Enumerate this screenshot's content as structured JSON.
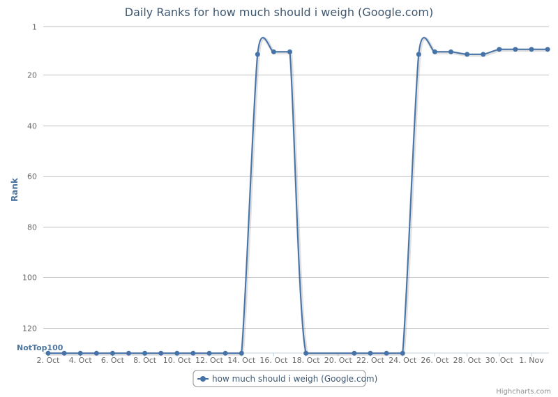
{
  "chart_data": {
    "type": "line",
    "title": "Daily Ranks for how much should i weigh (Google.com)",
    "ylabel": "Rank",
    "xlabel": "",
    "y_reversed": true,
    "ylim": [
      1,
      130
    ],
    "y_ticks": [
      {
        "value": 1,
        "label": "1"
      },
      {
        "value": 20,
        "label": "20"
      },
      {
        "value": 40,
        "label": "40"
      },
      {
        "value": 60,
        "label": "60"
      },
      {
        "value": 80,
        "label": "80"
      },
      {
        "value": 100,
        "label": "100"
      },
      {
        "value": 120,
        "label": "120"
      }
    ],
    "not_top_label": "NotTop100",
    "not_top_value": 130,
    "x_ticks": [
      "2. Oct",
      "4. Oct",
      "6. Oct",
      "8. Oct",
      "10. Oct",
      "12. Oct",
      "14. Oct",
      "16. Oct",
      "18. Oct",
      "20. Oct",
      "22. Oct",
      "24. Oct",
      "26. Oct",
      "28. Oct",
      "30. Oct",
      "1. Nov"
    ],
    "grid": true,
    "legend_position": "bottom-center",
    "series": [
      {
        "name": "how much should i weigh (Google.com)",
        "color": "#4572a7",
        "points": [
          {
            "x": "2. Oct",
            "y": 130
          },
          {
            "x": "3. Oct",
            "y": 130
          },
          {
            "x": "4. Oct",
            "y": 130
          },
          {
            "x": "5. Oct",
            "y": 130
          },
          {
            "x": "6. Oct",
            "y": 130
          },
          {
            "x": "7. Oct",
            "y": 130
          },
          {
            "x": "8. Oct",
            "y": 130
          },
          {
            "x": "9. Oct",
            "y": 130
          },
          {
            "x": "10. Oct",
            "y": 130
          },
          {
            "x": "11. Oct",
            "y": 130
          },
          {
            "x": "12. Oct",
            "y": 130
          },
          {
            "x": "13. Oct",
            "y": 130
          },
          {
            "x": "14. Oct",
            "y": 130
          },
          {
            "x": "15. Oct",
            "y": 12
          },
          {
            "x": "16. Oct",
            "y": 11
          },
          {
            "x": "17. Oct",
            "y": 11
          },
          {
            "x": "18. Oct",
            "y": 130
          },
          {
            "x": "21. Oct",
            "y": 130
          },
          {
            "x": "22. Oct",
            "y": 130
          },
          {
            "x": "23. Oct",
            "y": 130
          },
          {
            "x": "24. Oct",
            "y": 130
          },
          {
            "x": "25. Oct",
            "y": 12
          },
          {
            "x": "26. Oct",
            "y": 11
          },
          {
            "x": "27. Oct",
            "y": 11
          },
          {
            "x": "28. Oct",
            "y": 12
          },
          {
            "x": "29. Oct",
            "y": 12
          },
          {
            "x": "30. Oct",
            "y": 10
          },
          {
            "x": "31. Oct",
            "y": 10
          },
          {
            "x": "1. Nov",
            "y": 10
          },
          {
            "x": "2. Nov",
            "y": 10
          }
        ]
      }
    ]
  },
  "credits": "Highcharts.com"
}
